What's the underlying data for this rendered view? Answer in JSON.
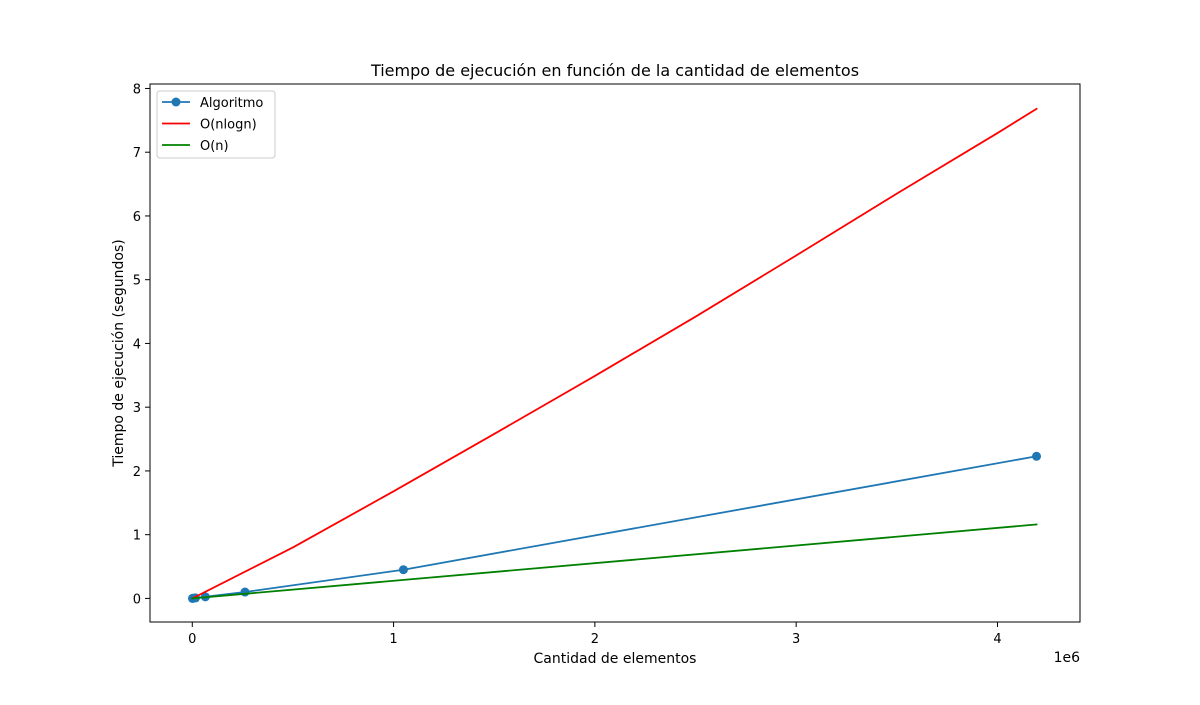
{
  "chart_data": {
    "type": "line",
    "title": "Tiempo de ejecución en función de la cantidad de elementos",
    "xlabel": "Cantidad de elementos",
    "ylabel": "Tiempo de ejecución (segundos)",
    "x_offset_label": "1e6",
    "xlim": [
      -0.21,
      4.41
    ],
    "ylim": [
      -0.37,
      8.07
    ],
    "x_ticks": [
      0,
      1,
      2,
      3,
      4
    ],
    "y_ticks": [
      0,
      1,
      2,
      3,
      4,
      5,
      6,
      7,
      8
    ],
    "x_tick_labels": [
      "0",
      "1",
      "2",
      "3",
      "4"
    ],
    "y_tick_labels": [
      "0",
      "1",
      "2",
      "3",
      "4",
      "5",
      "6",
      "7",
      "8"
    ],
    "grid": false,
    "legend_position": "top-left",
    "series": [
      {
        "name": "Algoritmo",
        "color": "#1f77b4",
        "marker": "circle",
        "x": [
          0.001,
          0.004,
          0.016,
          0.065,
          0.262,
          1.049,
          4.194
        ],
        "y": [
          0.0,
          0.002,
          0.008,
          0.025,
          0.1,
          0.45,
          2.23
        ]
      },
      {
        "name": "O(nlogn)",
        "color": "#ff0000",
        "marker": "none",
        "x": [
          0.0,
          0.5,
          1.0,
          1.5,
          2.0,
          2.5,
          3.0,
          3.5,
          4.0,
          4.194
        ],
        "y": [
          0.0,
          0.8,
          1.68,
          2.58,
          3.49,
          4.42,
          5.38,
          6.35,
          7.3,
          7.68
        ]
      },
      {
        "name": "O(n)",
        "color": "#008000",
        "marker": "none",
        "x": [
          0.0,
          4.194
        ],
        "y": [
          0.0,
          1.16
        ]
      }
    ]
  }
}
